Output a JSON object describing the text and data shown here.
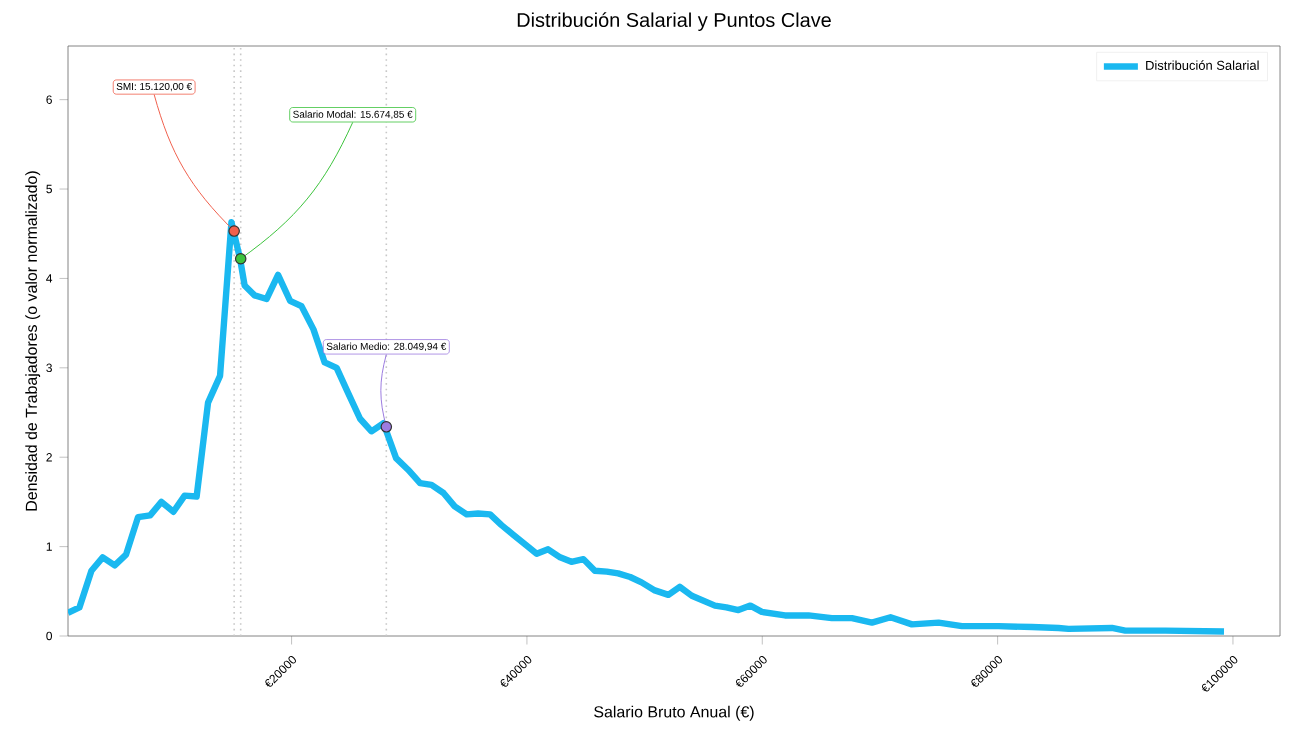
{
  "chart_data": {
    "type": "line",
    "title": "Distribución Salarial y Puntos Clave",
    "xlabel": "Salario Bruto Anual (€)",
    "ylabel": "Densidad de Trabajadores (o valor normalizado)",
    "xlim": [
      1000,
      104000
    ],
    "ylim": [
      0,
      6.6
    ],
    "xticks": [
      {
        "value": 20000,
        "label": "€20000"
      },
      {
        "value": 40000,
        "label": "€40000"
      },
      {
        "value": 60000,
        "label": "€60000"
      },
      {
        "value": 80000,
        "label": "€80000"
      },
      {
        "value": 100000,
        "label": "€100000"
      }
    ],
    "yticks": [
      0,
      1,
      2,
      3,
      4,
      5,
      6
    ],
    "legend": "top right",
    "grid": false,
    "series": [
      {
        "name": "Distribución Salarial",
        "color": "#1ab8f0",
        "line_style": "solid",
        "marker": "none",
        "x": [
          1000,
          1970,
          2990,
          3950,
          4970,
          5930,
          6950,
          7980,
          8940,
          9960,
          10910,
          11930,
          12900,
          13920,
          14890,
          15620,
          16010,
          16860,
          17880,
          18850,
          19870,
          20840,
          21860,
          22810,
          23830,
          24800,
          25820,
          26790,
          27810,
          28880,
          29900,
          30920,
          31890,
          32910,
          33860,
          34880,
          35850,
          36870,
          37840,
          38860,
          39810,
          40830,
          41800,
          42820,
          43780,
          44800,
          45770,
          46790,
          47750,
          48770,
          49740,
          50870,
          52020,
          52990,
          54010,
          55980,
          56950,
          57970,
          58990,
          59960,
          61930,
          63930,
          65910,
          67620,
          69320,
          70900,
          72720,
          74980,
          76970,
          80080,
          82920,
          85180,
          86030,
          89720,
          90850,
          94250,
          99240
        ],
        "values": [
          0.26,
          0.32,
          0.73,
          0.88,
          0.79,
          0.91,
          1.33,
          1.35,
          1.5,
          1.39,
          1.57,
          1.56,
          2.61,
          2.91,
          4.63,
          4.22,
          3.92,
          3.81,
          3.77,
          4.04,
          3.75,
          3.69,
          3.43,
          3.06,
          3.0,
          2.72,
          2.43,
          2.29,
          2.38,
          1.99,
          1.86,
          1.71,
          1.69,
          1.6,
          1.45,
          1.36,
          1.37,
          1.36,
          1.24,
          1.13,
          1.03,
          0.92,
          0.97,
          0.88,
          0.83,
          0.86,
          0.73,
          0.72,
          0.7,
          0.66,
          0.6,
          0.51,
          0.46,
          0.55,
          0.45,
          0.34,
          0.32,
          0.29,
          0.34,
          0.27,
          0.23,
          0.23,
          0.2,
          0.2,
          0.15,
          0.21,
          0.13,
          0.15,
          0.11,
          0.11,
          0.1,
          0.09,
          0.08,
          0.09,
          0.06,
          0.06,
          0.05
        ]
      },
      {
        "type": "scatter",
        "color": "#f0604d",
        "marker": "circle",
        "x": [
          15120
        ],
        "values": [
          4.53
        ]
      },
      {
        "type": "scatter",
        "color": "#3cc33c",
        "marker": "circle",
        "x": [
          15674.85
        ],
        "values": [
          4.22
        ]
      },
      {
        "type": "scatter",
        "color": "#9c7be0",
        "marker": "circle",
        "x": [
          28049.94
        ],
        "values": [
          2.34
        ]
      }
    ],
    "ref_lines": [
      {
        "axis": "x",
        "value": 15120,
        "color": "#c8c8c8",
        "line_style": "dotted"
      },
      {
        "axis": "x",
        "value": 15674.85,
        "color": "#c8c8c8",
        "line_style": "dotted"
      },
      {
        "axis": "x",
        "value": 28049.94,
        "color": "#c8c8c8",
        "line_style": "dotted"
      }
    ],
    "annotations": [
      {
        "text": "SMI: 15.120,00 €",
        "x": 15120,
        "y": 4.53
      },
      {
        "text": "Salario Modal: 15.674,85 €",
        "x": 15674.85,
        "y": 4.22
      },
      {
        "text": "Salario Medio: 28.049,94 €",
        "x": 28049.94,
        "y": 2.34
      }
    ]
  }
}
